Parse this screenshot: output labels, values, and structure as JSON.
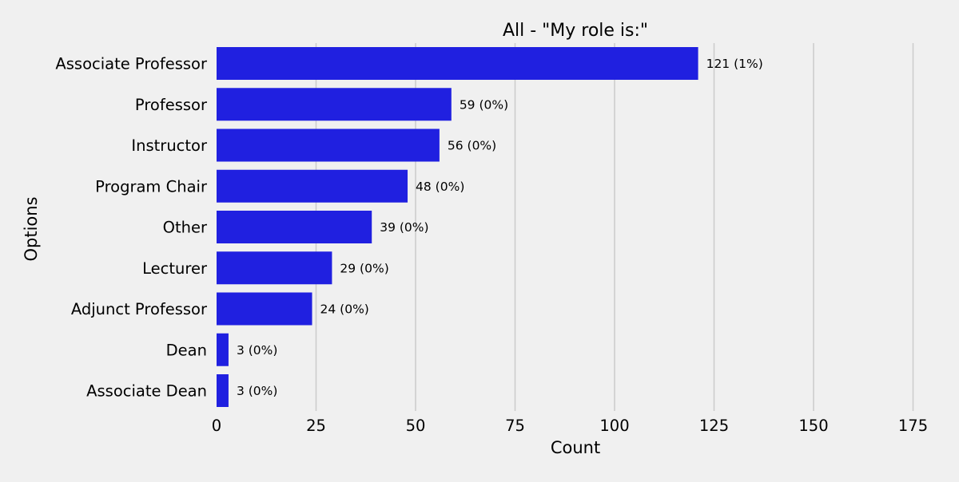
{
  "chart_data": {
    "type": "bar",
    "orientation": "horizontal",
    "title": "All - \"My role is:\"",
    "xlabel": "Count",
    "ylabel": "Options",
    "categories": [
      "Associate Professor",
      "Professor",
      "Instructor",
      "Program Chair",
      "Other",
      "Lecturer",
      "Adjunct Professor",
      "Dean",
      "Associate Dean"
    ],
    "values": [
      121,
      59,
      56,
      48,
      39,
      29,
      24,
      3,
      3
    ],
    "value_labels": [
      "121 (1%)",
      "59 (0%)",
      "56 (0%)",
      "48 (0%)",
      "39 (0%)",
      "29 (0%)",
      "24 (0%)",
      "3 (0%)",
      "3 (0%)"
    ],
    "xticks": [
      0,
      25,
      50,
      75,
      100,
      125,
      150,
      175
    ],
    "xtick_labels": [
      "0",
      "25",
      "50",
      "75",
      "100",
      "125",
      "150",
      "175"
    ],
    "xlim": [
      0,
      175
    ],
    "grid": "vertical",
    "legend": "none",
    "colors": {
      "bar": "#2020e0",
      "grid": "#cbcbcb",
      "background": "#f0f0f0",
      "text": "#000000"
    }
  }
}
